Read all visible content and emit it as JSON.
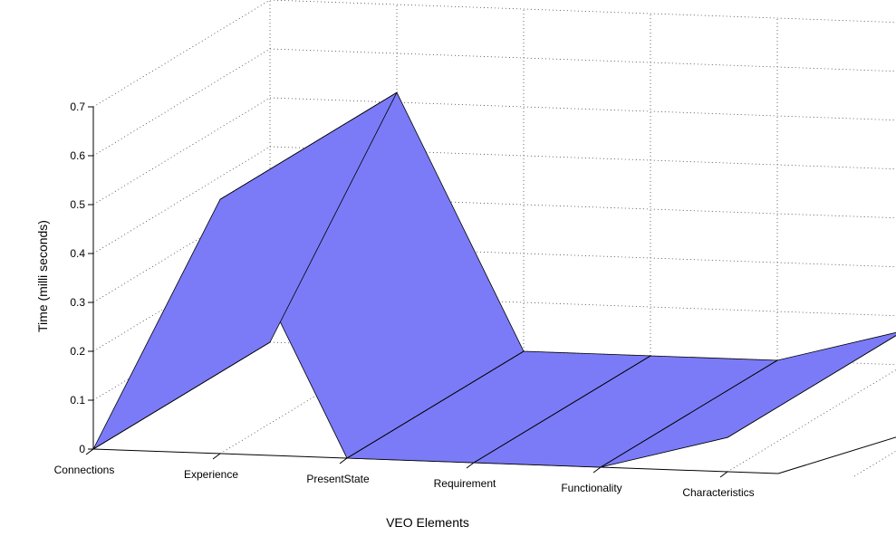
{
  "chart_data": {
    "type": "area",
    "title": "",
    "xlabel": "VEO Elements",
    "ylabel": "Time (milli seconds)",
    "categories": [
      "Connections",
      "Experience",
      "PresentState",
      "Requirement",
      "Functionality",
      "Characteristics"
    ],
    "ylim": [
      0,
      0.7
    ],
    "yticks": [
      "0",
      "0.1",
      "0.2",
      "0.3",
      "0.4",
      "0.5",
      "0.6",
      "0.7"
    ],
    "values": [
      0,
      0.52,
      0,
      0,
      0,
      0.07
    ],
    "grid": true,
    "surface_color": "#7b7bf8",
    "edge_color": "#000000"
  }
}
